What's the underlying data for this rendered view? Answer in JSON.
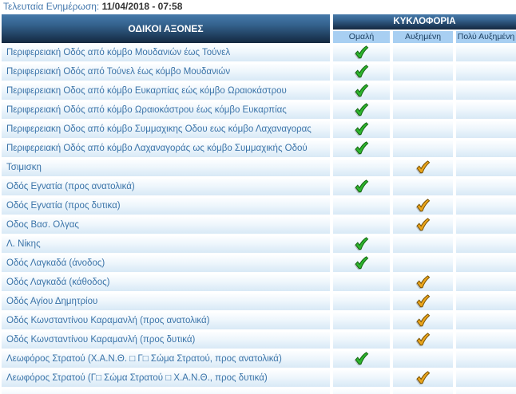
{
  "update": {
    "label": "Τελευταία Ενημέρωση:",
    "value": "11/04/2018 - 07:58"
  },
  "table": {
    "axes_header": "ΟΔΙΚΟΙ ΑΞΟΝΕΣ",
    "traffic_header": "ΚΥΚΛΟΦΟΡΙΑ",
    "status_columns": [
      {
        "key": "normal",
        "label": "Ομαλή"
      },
      {
        "key": "increased",
        "label": "Αυξημένη"
      },
      {
        "key": "very_increased",
        "label": "Πολύ Αυξημένη"
      }
    ],
    "rows": [
      {
        "name": "Περιφερειακή Οδός από κόμβο Μουδανιών έως Τούνελ",
        "status": "normal"
      },
      {
        "name": "Περιφερειακή Οδός από Τούνελ έως κόμβο Μουδανιών",
        "status": "normal"
      },
      {
        "name": "Περιφερειακη Οδος από κόμβο Ευκαρπίας εώς κόμβο Ωραιοκάστρου",
        "status": "normal"
      },
      {
        "name": "Περιφερειακή Οδός από κόμβο Ωραιοκάστρου έως κόμβο Ευκαρπίας",
        "status": "normal"
      },
      {
        "name": "Περιφερειακη Οδος από κόμβο Συμμαχικης Οδου εως κόμβο Λαχαναγορας",
        "status": "normal"
      },
      {
        "name": "Περιφερειακή Οδός από κόμβο Λαχαναγοράς ως κόμβο Συμμαχικής Οδού",
        "status": "normal"
      },
      {
        "name": "Τσιμισκη",
        "status": "increased"
      },
      {
        "name": "Οδός Εγνατία (προς ανατολικά)",
        "status": "normal"
      },
      {
        "name": "Οδός Εγνατία (προς δυτικα)",
        "status": "increased"
      },
      {
        "name": "Οδος Βασ. Ολγας",
        "status": "increased"
      },
      {
        "name": "Λ. Νίκης",
        "status": "normal"
      },
      {
        "name": "Οδός Λαγκαδά (άνοδος)",
        "status": "normal"
      },
      {
        "name": "Οδός Λαγκαδά (κάθοδος)",
        "status": "increased"
      },
      {
        "name": "Οδός Αγίου Δημητρίου",
        "status": "increased"
      },
      {
        "name": "Οδός Κωνσταντίνου Καραμανλή (προς ανατολικά)",
        "status": "increased"
      },
      {
        "name": "Οδός Κωνσταντίνου Καραμανλή (προς δυτικά)",
        "status": "increased"
      },
      {
        "name": "Λεωφόρος Στρατού (Χ.Α.Ν.Θ. □ Γ□ Σώμα Στρατού, προς ανατολικά)",
        "status": "normal"
      },
      {
        "name": "Λεωφόρος Στρατού (Γ□ Σώμα Στρατού □ Χ.Α.Ν.Θ., προς δυτικά)",
        "status": "increased"
      },
      {
        "name": "",
        "status": null
      }
    ]
  },
  "colors": {
    "header_gradient_top": "#4579a9",
    "header_gradient_bottom": "#16293f",
    "subheader_bg": "#a8cff2",
    "subheader_text": "#1b3e5f",
    "row_gradient_top": "#fdfeff",
    "row_gradient_bottom": "#d8e9f6",
    "row_text": "#3a73a8",
    "update_label_text": "#4478ad",
    "update_value_text": "#333333",
    "checks": {
      "normal": {
        "fill": "#2eb42e",
        "stroke": "#12660f"
      },
      "increased": {
        "fill": "#eaa51c",
        "stroke": "#7a5200"
      },
      "very_increased": {
        "fill": "#cc3333",
        "stroke": "#661111"
      }
    }
  }
}
